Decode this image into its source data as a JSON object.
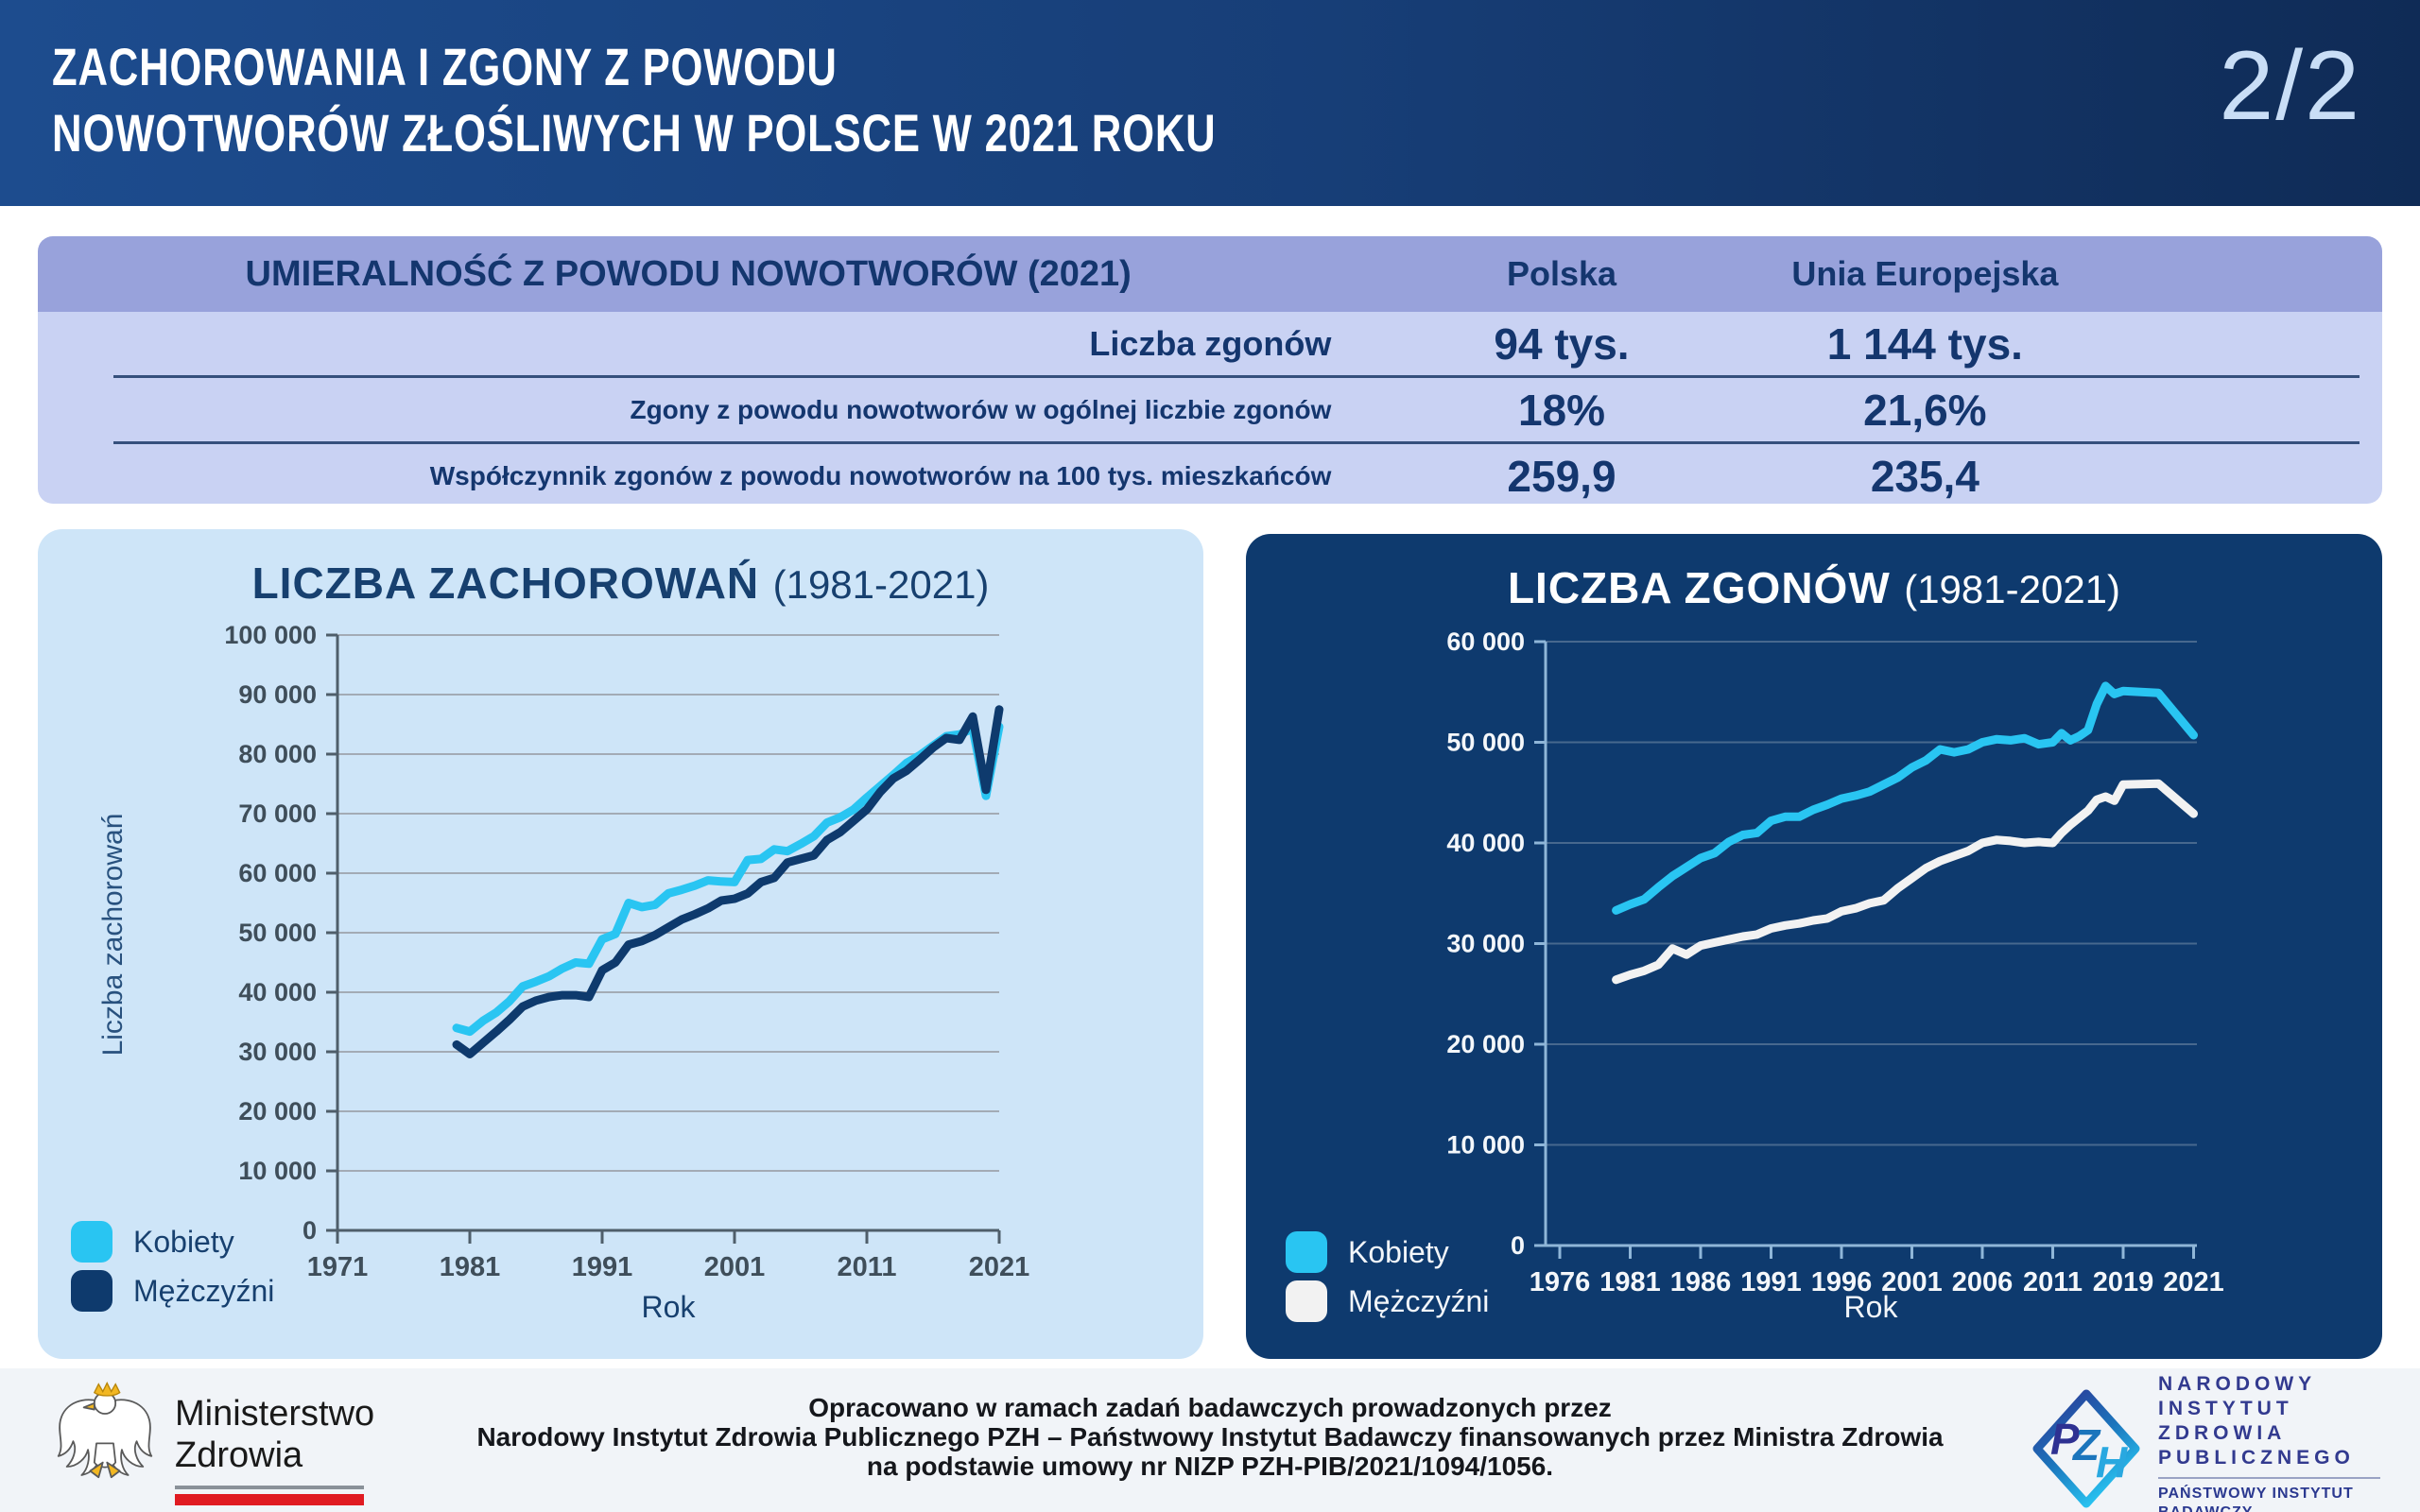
{
  "header": {
    "title_line1": "ZACHOROWANIA I ZGONY Z POWODU",
    "title_line2": "NOWOTWORÓW ZŁOŚLIWYCH W POLSCE W 2021 ROKU",
    "page_indicator": "2/2"
  },
  "table": {
    "title": "UMIERALNOŚĆ Z POWODU NOWOTWORÓW (2021)",
    "columns": [
      "Polska",
      "Unia Europejska"
    ],
    "rows": [
      {
        "label": "Liczba zgonów",
        "polska": "94 tys.",
        "ue": "1 144 tys."
      },
      {
        "label": "Zgony z powodu nowotworów w ogólnej liczbie zgonów",
        "polska": "18%",
        "ue": "21,6%"
      },
      {
        "label": "Współczynnik zgonów z powodu nowotworów na 100 tys. mieszkańców",
        "polska": "259,9",
        "ue": "235,4"
      }
    ]
  },
  "chart_data": [
    {
      "type": "line",
      "title": "LICZBA ZACHOROWAŃ",
      "range": "(1981-2021)",
      "ylabel": "Liczba zachorowań",
      "xlabel": "Rok",
      "ylim": [
        0,
        100000
      ],
      "ytick_step": 10000,
      "ytick_labels": [
        "0",
        "10 000",
        "20 000",
        "30 000",
        "40 000",
        "50 000",
        "60 000",
        "70 000",
        "80 000",
        "90 000",
        "100 000"
      ],
      "xticks": [
        "1971",
        "1981",
        "1991",
        "2001",
        "2011",
        "2021"
      ],
      "xtick_years": [
        1971,
        1981,
        1991,
        2001,
        2011,
        2021
      ],
      "grid": true,
      "legend_position": "bottom-left",
      "years": [
        1980,
        1981,
        1982,
        1983,
        1984,
        1985,
        1986,
        1987,
        1988,
        1989,
        1990,
        1991,
        1992,
        1993,
        1994,
        1995,
        1996,
        1997,
        1998,
        1999,
        2000,
        2001,
        2002,
        2003,
        2004,
        2005,
        2006,
        2007,
        2008,
        2009,
        2010,
        2011,
        2012,
        2013,
        2014,
        2015,
        2016,
        2017,
        2018,
        2019,
        2020,
        2021
      ],
      "series": [
        {
          "name": "Kobiety",
          "color": "#29c5f2",
          "values": [
            34000,
            33400,
            35200,
            36600,
            38500,
            41000,
            41800,
            42700,
            44000,
            45000,
            44800,
            48900,
            49800,
            55000,
            54300,
            54700,
            56600,
            57200,
            57900,
            58800,
            58600,
            58500,
            62200,
            62400,
            64000,
            63700,
            64900,
            66200,
            68500,
            69400,
            70700,
            72700,
            74600,
            76500,
            78500,
            79800,
            81400,
            83000,
            83300,
            84300,
            73000,
            84600
          ]
        },
        {
          "name": "Mężczyźni",
          "color": "#0e3a6d",
          "values": [
            31200,
            29600,
            31500,
            33400,
            35400,
            37600,
            38600,
            39200,
            39500,
            39500,
            39200,
            43700,
            45000,
            48000,
            48600,
            49600,
            50900,
            52200,
            53100,
            54100,
            55400,
            55700,
            56600,
            58500,
            59200,
            61800,
            62400,
            63000,
            65600,
            66900,
            68800,
            70700,
            73600,
            75900,
            77200,
            79100,
            81100,
            82700,
            82400,
            86300,
            74000,
            87500
          ]
        }
      ]
    },
    {
      "type": "line",
      "title": "LICZBA ZGONÓW",
      "range": "(1981-2021)",
      "ylabel": "",
      "xlabel": "Rok",
      "ylim": [
        0,
        60000
      ],
      "ytick_step": 10000,
      "ytick_labels": [
        "0",
        "10 000",
        "20 000",
        "30 000",
        "40 000",
        "50 000",
        "60 000"
      ],
      "xticks": [
        "1976",
        "1981",
        "1986",
        "1991",
        "1996",
        "2001",
        "2006",
        "2011",
        "2019",
        "2021"
      ],
      "xtick_years": [
        1976,
        1981,
        1986,
        1991,
        1996,
        2001,
        2006,
        2011,
        2019,
        2021
      ],
      "grid": true,
      "legend_position": "bottom-left",
      "years": [
        1980,
        1981,
        1982,
        1983,
        1984,
        1985,
        1986,
        1987,
        1988,
        1989,
        1990,
        1991,
        1992,
        1993,
        1994,
        1995,
        1996,
        1997,
        1998,
        1999,
        2000,
        2001,
        2002,
        2003,
        2004,
        2005,
        2006,
        2007,
        2008,
        2009,
        2010,
        2011,
        2012,
        2013,
        2014,
        2015,
        2016,
        2017,
        2018,
        2019,
        2020,
        2021
      ],
      "series": [
        {
          "name": "Kobiety",
          "color": "#29c5f2",
          "values": [
            33300,
            33900,
            34400,
            35600,
            36700,
            37600,
            38500,
            39000,
            40100,
            40800,
            41000,
            42200,
            42600,
            42600,
            43300,
            43800,
            44400,
            44700,
            45100,
            45800,
            46500,
            47500,
            48200,
            49300,
            49000,
            49300,
            50000,
            50300,
            50200,
            50400,
            49800,
            50000,
            50900,
            50200,
            50600,
            51200,
            53800,
            55600,
            54800,
            55100,
            54900,
            50700
          ]
        },
        {
          "name": "Mężczyźni",
          "color": "#f2f2f2",
          "values": [
            26400,
            26900,
            27300,
            27900,
            29500,
            28900,
            29800,
            30100,
            30400,
            30700,
            30900,
            31500,
            31800,
            32000,
            32300,
            32500,
            33200,
            33500,
            34000,
            34300,
            35500,
            36500,
            37500,
            38200,
            38700,
            39200,
            40000,
            40300,
            40200,
            40000,
            40100,
            40000,
            41000,
            41800,
            42500,
            43200,
            44300,
            44600,
            44200,
            45800,
            45900,
            42900
          ]
        }
      ]
    }
  ],
  "footer": {
    "credit_line1": "Opracowano w ramach zadań badawczych prowadzonych przez",
    "credit_line2": "Narodowy Instytut Zdrowia Publicznego PZH – Państwowy Instytut Badawczy finansowanych przez Ministra Zdrowia",
    "credit_line3": "na podstawie umowy nr NIZP PZH-PIB/2021/1094/1056.",
    "ministry_line1": "Ministerstwo",
    "ministry_line2": "Zdrowia",
    "pzh_line1": "NARODOWY",
    "pzh_line2": "INSTYTUT",
    "pzh_line3": "ZDROWIA",
    "pzh_line4": "PUBLICZNEGO",
    "pzh_sub1": "PAŃSTWOWY INSTYTUT",
    "pzh_sub2": "BADAWCZY"
  },
  "colors": {
    "accent_cyan": "#29c5f2",
    "navy": "#0e3a6d",
    "panel_light": "#cee5f8",
    "panel_dark": "#0e3a6e",
    "table_header": "#98a2db",
    "table_body": "#c9d2f3",
    "header_gradient_start": "#1d4c8e",
    "header_gradient_end": "#0f2b56",
    "flag_red": "#e01b22"
  }
}
